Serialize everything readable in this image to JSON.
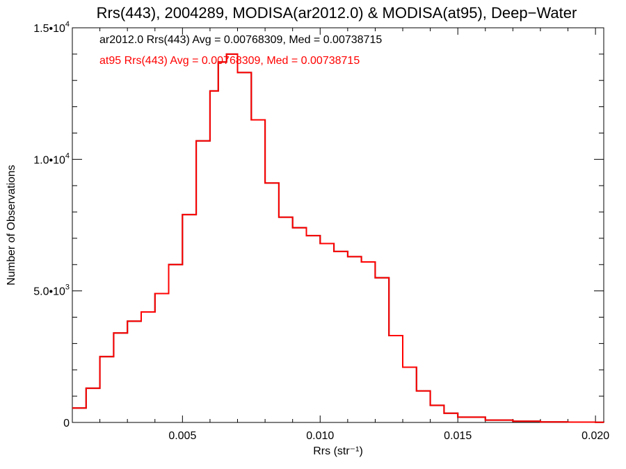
{
  "chart_data": {
    "type": "line",
    "title": "Rrs(443), 2004289, MODISA(ar2012.0) & MODISA(at95), Deep−Water",
    "xlabel": "Rrs (str⁻¹)",
    "ylabel": "Number of Observations",
    "xlim": [
      0.001,
      0.0203
    ],
    "ylim": [
      0,
      15000
    ],
    "x_ticks": [
      {
        "value": 0.005,
        "label": "0.005"
      },
      {
        "value": 0.01,
        "label": "0.010"
      },
      {
        "value": 0.015,
        "label": "0.015"
      },
      {
        "value": 0.02,
        "label": "0.020"
      }
    ],
    "y_ticks": [
      {
        "value": 0,
        "mantissa": "0",
        "exp": ""
      },
      {
        "value": 5000,
        "mantissa": "5.0•10",
        "exp": "3"
      },
      {
        "value": 10000,
        "mantissa": "1.0•10",
        "exp": "4"
      },
      {
        "value": 15000,
        "mantissa": "1.5•10",
        "exp": "4"
      }
    ],
    "annotations": [
      {
        "text": "ar2012.0 Rrs(443) Avg = 0.00768309, Med = 0.00738715",
        "color": "#000000"
      },
      {
        "text": "at95 Rrs(443) Avg = 0.00768309, Med = 0.00738715",
        "color": "#ff0000"
      }
    ],
    "grid": false,
    "step": true,
    "x": [
      0.001,
      0.0015,
      0.002,
      0.0025,
      0.003,
      0.0035,
      0.004,
      0.0045,
      0.005,
      0.0055,
      0.006,
      0.0063,
      0.0066,
      0.007,
      0.0075,
      0.008,
      0.0085,
      0.009,
      0.0095,
      0.01,
      0.0105,
      0.011,
      0.0115,
      0.012,
      0.0125,
      0.013,
      0.0135,
      0.014,
      0.0145,
      0.015,
      0.016,
      0.017,
      0.018,
      0.019,
      0.02,
      0.0203
    ],
    "series": [
      {
        "values": [
          550,
          1300,
          2500,
          3400,
          3850,
          4200,
          4900,
          6000,
          7900,
          10700,
          12600,
          13700,
          14000,
          13300,
          11500,
          9100,
          7800,
          7400,
          7100,
          6800,
          6500,
          6300,
          6100,
          5500,
          3300,
          2100,
          1200,
          650,
          350,
          200,
          90,
          45,
          20,
          12,
          8,
          6
        ],
        "color": "#000000"
      },
      {
        "values": [
          550,
          1300,
          2500,
          3400,
          3850,
          4200,
          4900,
          6000,
          7900,
          10700,
          12600,
          13700,
          14000,
          13300,
          11500,
          9100,
          7800,
          7400,
          7100,
          6800,
          6500,
          6300,
          6100,
          5500,
          3300,
          2100,
          1200,
          650,
          350,
          200,
          90,
          45,
          20,
          12,
          8,
          6
        ],
        "color": "#ff0000"
      }
    ]
  }
}
